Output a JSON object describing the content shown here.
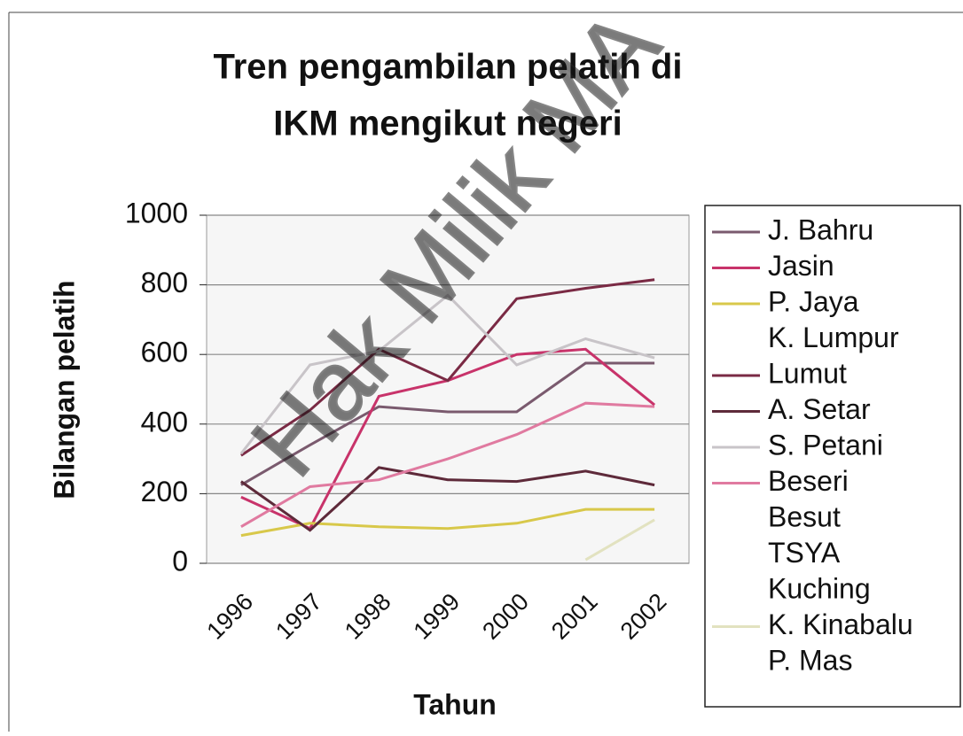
{
  "chart_data": {
    "type": "line",
    "title": "Tren pengambilan pelatih di",
    "subtitle": "IKM mengikut negeri",
    "x_label": "Tahun",
    "y_label": "Bilangan pelatih",
    "watermark": "Hak Milik MA",
    "categories": [
      "1996",
      "1997",
      "1998",
      "1999",
      "2000",
      "2001",
      "2002"
    ],
    "ylim": [
      0,
      1000
    ],
    "yticks": [
      0,
      200,
      400,
      600,
      800,
      1000
    ],
    "grid": true,
    "legend": "right",
    "series": [
      {
        "name": "J. Bahru",
        "color": "#7a5a6e",
        "values": [
          225,
          340,
          450,
          435,
          435,
          575,
          575
        ]
      },
      {
        "name": "Jasin",
        "color": "#c8336a",
        "values": [
          190,
          100,
          480,
          525,
          600,
          615,
          455
        ]
      },
      {
        "name": "P. Jaya",
        "color": "#d8c84a",
        "values": [
          80,
          115,
          105,
          100,
          115,
          155,
          155
        ]
      },
      {
        "name": "K. Lumpur",
        "values": [
          null,
          null,
          null,
          null,
          null,
          null,
          null
        ]
      },
      {
        "name": "Lumut",
        "color": "#7a2a44",
        "values": [
          310,
          440,
          615,
          525,
          760,
          790,
          815
        ]
      },
      {
        "name": "A. Setar",
        "color": "#5e2a3a",
        "values": [
          235,
          95,
          275,
          240,
          235,
          265,
          225
        ]
      },
      {
        "name": "S. Petani",
        "color": "#c8c4c8",
        "values": [
          315,
          570,
          610,
          770,
          570,
          645,
          590
        ]
      },
      {
        "name": "Beseri",
        "color": "#e07aa0",
        "values": [
          105,
          220,
          240,
          300,
          370,
          460,
          450
        ]
      },
      {
        "name": "Besut",
        "values": [
          null,
          null,
          null,
          null,
          null,
          null,
          null
        ]
      },
      {
        "name": "TSYA",
        "values": [
          null,
          null,
          null,
          null,
          null,
          null,
          null
        ]
      },
      {
        "name": "Kuching",
        "values": [
          null,
          null,
          null,
          null,
          null,
          null,
          null
        ]
      },
      {
        "name": "K. Kinabalu",
        "color": "#e2e2c0",
        "values": [
          null,
          null,
          null,
          null,
          null,
          10,
          125
        ]
      },
      {
        "name": "P. Mas",
        "values": [
          null,
          null,
          null,
          null,
          null,
          null,
          null
        ]
      }
    ]
  }
}
